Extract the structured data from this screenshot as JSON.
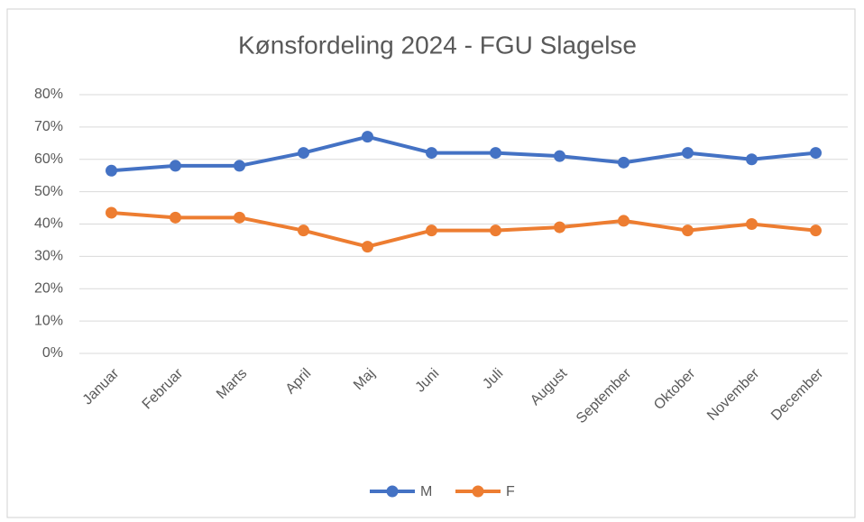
{
  "chart_data": {
    "type": "line",
    "title": "Kønsfordeling 2024 - FGU Slagelse",
    "categories": [
      "Januar",
      "Februar",
      "Marts",
      "April",
      "Maj",
      "Juni",
      "Juli",
      "August",
      "September",
      "Oktober",
      "November",
      "December"
    ],
    "series": [
      {
        "name": "M",
        "color": "#4472c4",
        "values": [
          56.5,
          58,
          58,
          62,
          67,
          62,
          62,
          61,
          59,
          62,
          60,
          62
        ]
      },
      {
        "name": "F",
        "color": "#ed7d31",
        "values": [
          43.5,
          42,
          42,
          38,
          33,
          38,
          38,
          39,
          41,
          38,
          40,
          38
        ]
      }
    ],
    "ylim": [
      0,
      80
    ],
    "yticks": [
      {
        "value": 0,
        "label": "0%"
      },
      {
        "value": 10,
        "label": "10%"
      },
      {
        "value": 20,
        "label": "20%"
      },
      {
        "value": 30,
        "label": "30%"
      },
      {
        "value": 40,
        "label": "40%"
      },
      {
        "value": 50,
        "label": "50%"
      },
      {
        "value": 60,
        "label": "60%"
      },
      {
        "value": 70,
        "label": "70%"
      },
      {
        "value": 80,
        "label": "80%"
      }
    ],
    "grid": true,
    "legend": "bottom"
  }
}
